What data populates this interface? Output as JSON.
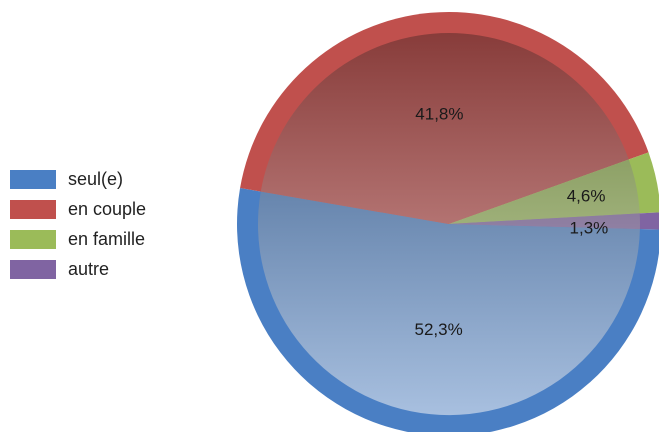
{
  "chart_data": {
    "type": "pie",
    "slices": [
      {
        "label": "seul(e)",
        "value": 52.3,
        "value_label": "52,3%",
        "color": "#4a7fc4"
      },
      {
        "label": "en couple",
        "value": 41.8,
        "value_label": "41,8%",
        "color": "#c0504d"
      },
      {
        "label": "en famille",
        "value": 4.6,
        "value_label": "4,6%",
        "color": "#9bbb59"
      },
      {
        "label": "autre",
        "value": 1.3,
        "value_label": "1,3%",
        "color": "#8064a2"
      }
    ],
    "legend_position": "left"
  }
}
